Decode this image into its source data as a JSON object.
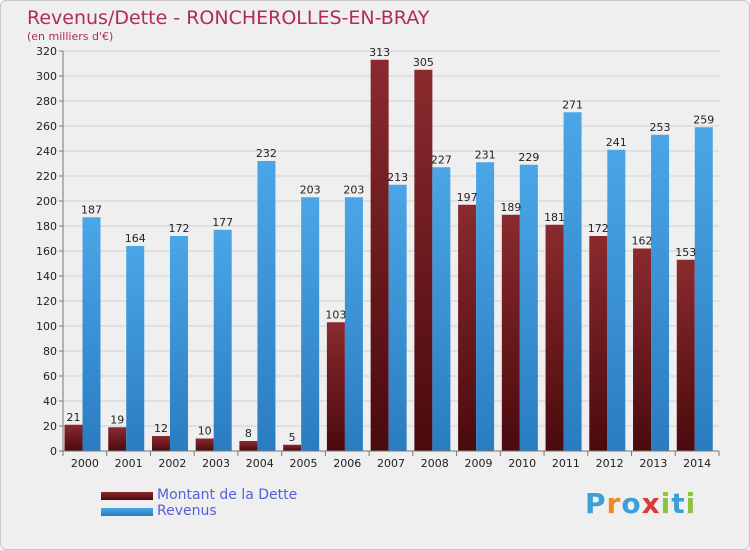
{
  "header": {
    "title": "Revenus/Dette - RONCHEROLLES-EN-BRAY",
    "subtitle": "(en milliers d'€)"
  },
  "logo": {
    "text": "Proxiti",
    "letters": [
      "P",
      "r",
      "o",
      "x",
      "i",
      "t",
      "i"
    ],
    "colors": [
      "#3aa0d8",
      "#f08a1c",
      "#3aa0d8",
      "#d83a3a",
      "#8cc43c",
      "#3aa0d8",
      "#8cc43c"
    ]
  },
  "chart_data": {
    "type": "bar",
    "title": "Revenus/Dette - RONCHEROLLES-EN-BRAY",
    "ylabel": "(en milliers d'€)",
    "ylim": [
      0,
      320
    ],
    "yticks": [
      0,
      20,
      40,
      60,
      80,
      100,
      120,
      140,
      160,
      180,
      200,
      220,
      240,
      260,
      280,
      300,
      320
    ],
    "grid": true,
    "legend_position": "bottom-left",
    "categories": [
      "2000",
      "2001",
      "2002",
      "2003",
      "2004",
      "2005",
      "2006",
      "2007",
      "2008",
      "2009",
      "2010",
      "2011",
      "2012",
      "2013",
      "2014"
    ],
    "series": [
      {
        "name": "Montant de la Dette",
        "color": "#7a1f22",
        "values": [
          21,
          19,
          12,
          10,
          8,
          5,
          103,
          313,
          305,
          197,
          189,
          181,
          172,
          162,
          153
        ]
      },
      {
        "name": "Revenus",
        "color": "#3f98dc",
        "values": [
          187,
          164,
          172,
          177,
          232,
          203,
          203,
          213,
          227,
          231,
          229,
          271,
          241,
          253,
          259
        ]
      }
    ]
  }
}
